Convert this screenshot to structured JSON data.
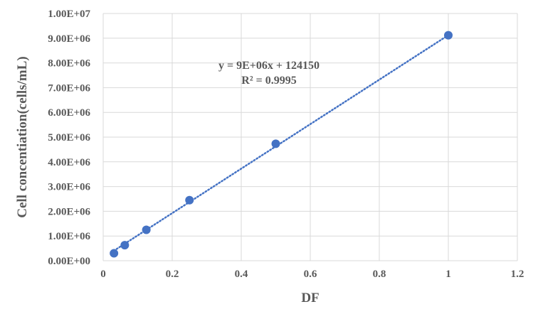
{
  "chart_data": {
    "type": "scatter",
    "title": "",
    "xlabel": "DF",
    "ylabel": "Cell concentiation(cells/mL)",
    "xlim": [
      0,
      1.2
    ],
    "ylim": [
      0,
      10000000
    ],
    "x_ticks": [
      0,
      0.2,
      0.4,
      0.6,
      0.8,
      1,
      1.2
    ],
    "x_tick_labels": [
      "0",
      "0.2",
      "0.4",
      "0.6",
      "0.8",
      "1",
      "1.2"
    ],
    "y_ticks": [
      0,
      1000000,
      2000000,
      3000000,
      4000000,
      5000000,
      6000000,
      7000000,
      8000000,
      9000000,
      10000000
    ],
    "y_tick_labels": [
      "0.00E+00",
      "1.00E+06",
      "2.00E+06",
      "3.00E+06",
      "4.00E+06",
      "5.00E+06",
      "6.00E+06",
      "7.00E+06",
      "8.00E+06",
      "9.00E+06",
      "1.00E+07"
    ],
    "grid": true,
    "legend": "none",
    "series": [
      {
        "points": [
          {
            "x": 0.03125,
            "y": 300000
          },
          {
            "x": 0.0625,
            "y": 630000
          },
          {
            "x": 0.125,
            "y": 1250000
          },
          {
            "x": 0.25,
            "y": 2450000
          },
          {
            "x": 0.5,
            "y": 4730000
          },
          {
            "x": 1,
            "y": 9120000
          }
        ],
        "color": "#4472c4"
      }
    ],
    "trendline": {
      "type": "linear",
      "style": "dotted",
      "color": "#4472c4",
      "slope": 9000000,
      "intercept": 124150,
      "x_range": [
        0.03125,
        1
      ]
    },
    "annotations": [
      "y = 9E+06x + 124150",
      "R² = 0.9995"
    ]
  }
}
